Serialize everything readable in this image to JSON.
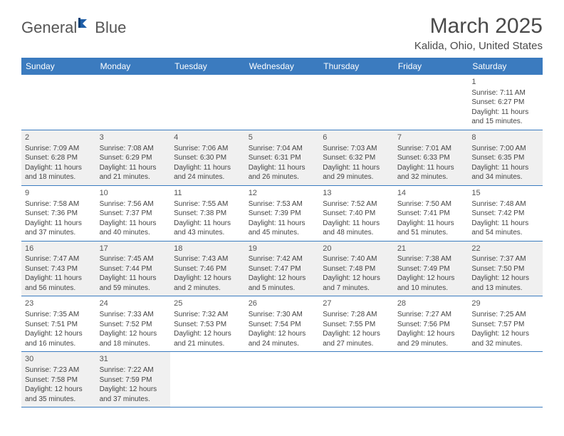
{
  "logo": {
    "text1": "General",
    "text2": "Blue"
  },
  "title": "March 2025",
  "location": "Kalida, Ohio, United States",
  "colors": {
    "header_bg": "#3b7bbf",
    "header_fg": "#ffffff",
    "alt_row_bg": "#f0f0f0",
    "row_border": "#3b7bbf",
    "text": "#444444",
    "title_color": "#4a4a4a"
  },
  "day_headers": [
    "Sunday",
    "Monday",
    "Tuesday",
    "Wednesday",
    "Thursday",
    "Friday",
    "Saturday"
  ],
  "weeks": [
    {
      "alt": false,
      "cells": [
        {
          "blank": true
        },
        {
          "blank": true
        },
        {
          "blank": true
        },
        {
          "blank": true
        },
        {
          "blank": true
        },
        {
          "blank": true
        },
        {
          "n": "1",
          "sunrise": "7:11 AM",
          "sunset": "6:27 PM",
          "dl_h": "11",
          "dl_m": "15"
        }
      ]
    },
    {
      "alt": true,
      "cells": [
        {
          "n": "2",
          "sunrise": "7:09 AM",
          "sunset": "6:28 PM",
          "dl_h": "11",
          "dl_m": "18"
        },
        {
          "n": "3",
          "sunrise": "7:08 AM",
          "sunset": "6:29 PM",
          "dl_h": "11",
          "dl_m": "21"
        },
        {
          "n": "4",
          "sunrise": "7:06 AM",
          "sunset": "6:30 PM",
          "dl_h": "11",
          "dl_m": "24"
        },
        {
          "n": "5",
          "sunrise": "7:04 AM",
          "sunset": "6:31 PM",
          "dl_h": "11",
          "dl_m": "26"
        },
        {
          "n": "6",
          "sunrise": "7:03 AM",
          "sunset": "6:32 PM",
          "dl_h": "11",
          "dl_m": "29"
        },
        {
          "n": "7",
          "sunrise": "7:01 AM",
          "sunset": "6:33 PM",
          "dl_h": "11",
          "dl_m": "32"
        },
        {
          "n": "8",
          "sunrise": "7:00 AM",
          "sunset": "6:35 PM",
          "dl_h": "11",
          "dl_m": "34"
        }
      ]
    },
    {
      "alt": false,
      "cells": [
        {
          "n": "9",
          "sunrise": "7:58 AM",
          "sunset": "7:36 PM",
          "dl_h": "11",
          "dl_m": "37"
        },
        {
          "n": "10",
          "sunrise": "7:56 AM",
          "sunset": "7:37 PM",
          "dl_h": "11",
          "dl_m": "40"
        },
        {
          "n": "11",
          "sunrise": "7:55 AM",
          "sunset": "7:38 PM",
          "dl_h": "11",
          "dl_m": "43"
        },
        {
          "n": "12",
          "sunrise": "7:53 AM",
          "sunset": "7:39 PM",
          "dl_h": "11",
          "dl_m": "45"
        },
        {
          "n": "13",
          "sunrise": "7:52 AM",
          "sunset": "7:40 PM",
          "dl_h": "11",
          "dl_m": "48"
        },
        {
          "n": "14",
          "sunrise": "7:50 AM",
          "sunset": "7:41 PM",
          "dl_h": "11",
          "dl_m": "51"
        },
        {
          "n": "15",
          "sunrise": "7:48 AM",
          "sunset": "7:42 PM",
          "dl_h": "11",
          "dl_m": "54"
        }
      ]
    },
    {
      "alt": true,
      "cells": [
        {
          "n": "16",
          "sunrise": "7:47 AM",
          "sunset": "7:43 PM",
          "dl_h": "11",
          "dl_m": "56"
        },
        {
          "n": "17",
          "sunrise": "7:45 AM",
          "sunset": "7:44 PM",
          "dl_h": "11",
          "dl_m": "59"
        },
        {
          "n": "18",
          "sunrise": "7:43 AM",
          "sunset": "7:46 PM",
          "dl_h": "12",
          "dl_m": "2"
        },
        {
          "n": "19",
          "sunrise": "7:42 AM",
          "sunset": "7:47 PM",
          "dl_h": "12",
          "dl_m": "5"
        },
        {
          "n": "20",
          "sunrise": "7:40 AM",
          "sunset": "7:48 PM",
          "dl_h": "12",
          "dl_m": "7"
        },
        {
          "n": "21",
          "sunrise": "7:38 AM",
          "sunset": "7:49 PM",
          "dl_h": "12",
          "dl_m": "10"
        },
        {
          "n": "22",
          "sunrise": "7:37 AM",
          "sunset": "7:50 PM",
          "dl_h": "12",
          "dl_m": "13"
        }
      ]
    },
    {
      "alt": false,
      "cells": [
        {
          "n": "23",
          "sunrise": "7:35 AM",
          "sunset": "7:51 PM",
          "dl_h": "12",
          "dl_m": "16"
        },
        {
          "n": "24",
          "sunrise": "7:33 AM",
          "sunset": "7:52 PM",
          "dl_h": "12",
          "dl_m": "18"
        },
        {
          "n": "25",
          "sunrise": "7:32 AM",
          "sunset": "7:53 PM",
          "dl_h": "12",
          "dl_m": "21"
        },
        {
          "n": "26",
          "sunrise": "7:30 AM",
          "sunset": "7:54 PM",
          "dl_h": "12",
          "dl_m": "24"
        },
        {
          "n": "27",
          "sunrise": "7:28 AM",
          "sunset": "7:55 PM",
          "dl_h": "12",
          "dl_m": "27"
        },
        {
          "n": "28",
          "sunrise": "7:27 AM",
          "sunset": "7:56 PM",
          "dl_h": "12",
          "dl_m": "29"
        },
        {
          "n": "29",
          "sunrise": "7:25 AM",
          "sunset": "7:57 PM",
          "dl_h": "12",
          "dl_m": "32"
        }
      ]
    },
    {
      "alt": true,
      "cells": [
        {
          "n": "30",
          "sunrise": "7:23 AM",
          "sunset": "7:58 PM",
          "dl_h": "12",
          "dl_m": "35"
        },
        {
          "n": "31",
          "sunrise": "7:22 AM",
          "sunset": "7:59 PM",
          "dl_h": "12",
          "dl_m": "37"
        },
        {
          "blank": true
        },
        {
          "blank": true
        },
        {
          "blank": true
        },
        {
          "blank": true
        },
        {
          "blank": true
        }
      ]
    }
  ],
  "labels": {
    "sunrise": "Sunrise:",
    "sunset": "Sunset:",
    "daylight": "Daylight:",
    "hours": "hours",
    "and": "and",
    "minutes": "minutes."
  }
}
